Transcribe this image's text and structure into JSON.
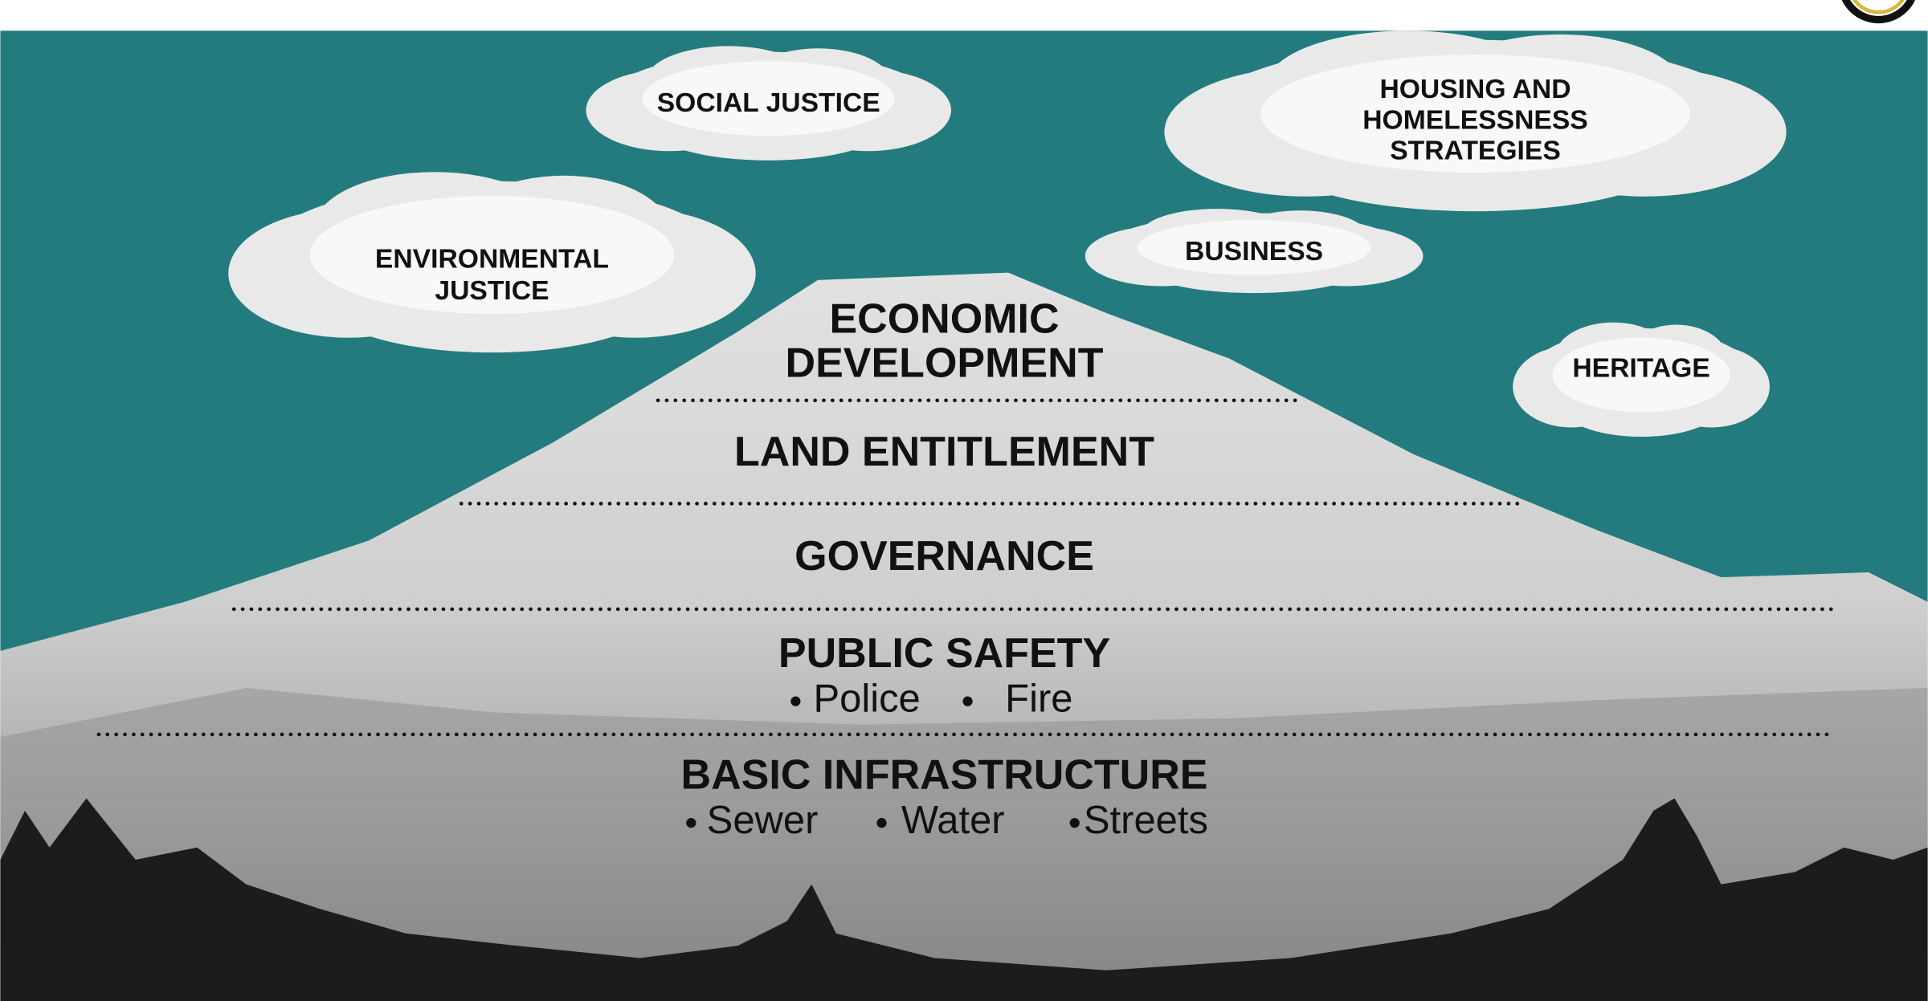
{
  "clouds": [
    {
      "lines": [
        "SOCIAL JUSTICE"
      ]
    },
    {
      "lines": [
        "ENVIRONMENTAL",
        "JUSTICE"
      ]
    },
    {
      "lines": [
        "HOUSING AND",
        "HOMELESSNESS",
        "STRATEGIES"
      ]
    },
    {
      "lines": [
        "BUSINESS"
      ]
    },
    {
      "lines": [
        "HERITAGE"
      ]
    }
  ],
  "tiers": [
    {
      "lines": [
        "ECONOMIC",
        "DEVELOPMENT"
      ]
    },
    {
      "lines": [
        "LAND ENTITLEMENT"
      ]
    },
    {
      "lines": [
        "GOVERNANCE"
      ]
    },
    {
      "lines": [
        "PUBLIC SAFETY"
      ],
      "items": [
        "Police",
        "Fire"
      ]
    },
    {
      "lines": [
        "BASIC INFRASTRUCTURE"
      ],
      "items": [
        "Sewer",
        "Water",
        "Streets"
      ]
    }
  ]
}
